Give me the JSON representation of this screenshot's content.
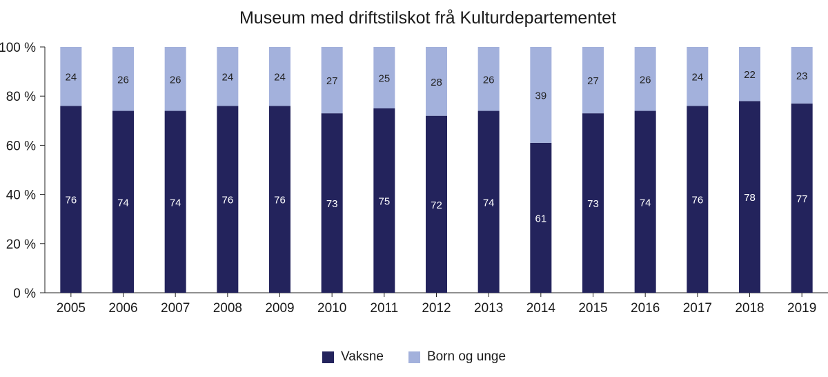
{
  "chart_data": {
    "type": "bar",
    "stacked": true,
    "title": "Museum med driftstilskot frå Kulturdepartementet",
    "xlabel": "",
    "ylabel": "",
    "ylim": [
      0,
      100
    ],
    "yticks": [
      "0 %",
      "20 %",
      "40 %",
      "60 %",
      "80 %",
      "100 %"
    ],
    "categories": [
      "2005",
      "2006",
      "2007",
      "2008",
      "2009",
      "2010",
      "2011",
      "2012",
      "2013",
      "2014",
      "2015",
      "2016",
      "2017",
      "2018",
      "2019"
    ],
    "series": [
      {
        "name": "Vaksne",
        "color": "#23235c",
        "label_color": "#ffffff",
        "values": [
          76,
          74,
          74,
          76,
          76,
          73,
          75,
          72,
          74,
          61,
          73,
          74,
          76,
          78,
          77
        ]
      },
      {
        "name": "Born og unge",
        "color": "#a3b1dc",
        "label_color": "#222222",
        "values": [
          24,
          26,
          26,
          24,
          24,
          27,
          25,
          28,
          26,
          39,
          27,
          26,
          24,
          22,
          23
        ]
      }
    ],
    "grid": false,
    "legend_position": "bottom"
  }
}
